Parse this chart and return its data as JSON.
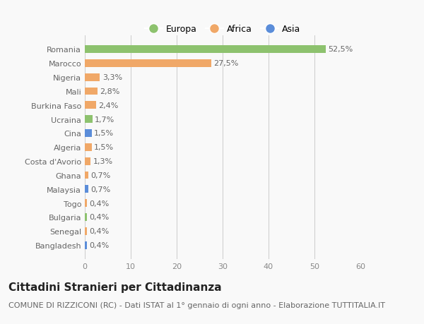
{
  "categories": [
    "Bangladesh",
    "Senegal",
    "Bulgaria",
    "Togo",
    "Malaysia",
    "Ghana",
    "Costa d'Avorio",
    "Algeria",
    "Cina",
    "Ucraina",
    "Burkina Faso",
    "Mali",
    "Nigeria",
    "Marocco",
    "Romania"
  ],
  "values": [
    0.4,
    0.4,
    0.4,
    0.4,
    0.7,
    0.7,
    1.3,
    1.5,
    1.5,
    1.7,
    2.4,
    2.8,
    3.3,
    27.5,
    52.5
  ],
  "labels": [
    "0,4%",
    "0,4%",
    "0,4%",
    "0,4%",
    "0,7%",
    "0,7%",
    "1,3%",
    "1,5%",
    "1,5%",
    "1,7%",
    "2,4%",
    "2,8%",
    "3,3%",
    "27,5%",
    "52,5%"
  ],
  "colors": [
    "#5b8dd9",
    "#f0a868",
    "#8dc26e",
    "#f0a868",
    "#5b8dd9",
    "#f0a868",
    "#f0a868",
    "#f0a868",
    "#5b8dd9",
    "#8dc26e",
    "#f0a868",
    "#f0a868",
    "#f0a868",
    "#f0a868",
    "#8dc26e"
  ],
  "legend_labels": [
    "Europa",
    "Africa",
    "Asia"
  ],
  "legend_colors": [
    "#8dc26e",
    "#f0a868",
    "#5b8dd9"
  ],
  "title": "Cittadini Stranieri per Cittadinanza",
  "subtitle": "COMUNE DI RIZZICONI (RC) - Dati ISTAT al 1° gennaio di ogni anno - Elaborazione TUTTITALIA.IT",
  "xlim": [
    0,
    60
  ],
  "xticks": [
    0,
    10,
    20,
    30,
    40,
    50,
    60
  ],
  "background_color": "#f9f9f9",
  "bar_height": 0.55,
  "title_fontsize": 11,
  "subtitle_fontsize": 8,
  "label_fontsize": 8,
  "tick_fontsize": 8,
  "legend_fontsize": 9
}
